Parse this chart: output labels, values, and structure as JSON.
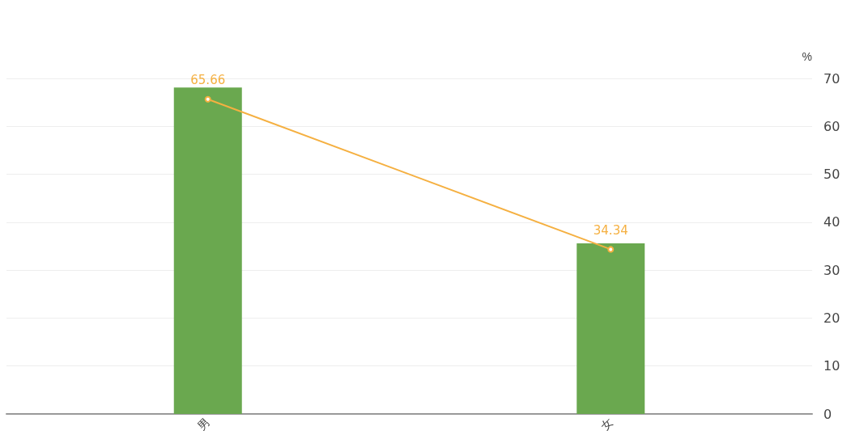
{
  "chart_data": {
    "type": "bar",
    "ylabel": "%",
    "categories": [
      "男",
      "女"
    ],
    "series": [
      {
        "color": "#6aa84f",
        "values": [
          68.1,
          35.6
        ]
      },
      {
        "type": "line",
        "color": "#f5b041",
        "values": [
          65.66,
          34.34
        ],
        "value_labels": [
          "65.66",
          "34.34"
        ],
        "marker": "circle"
      }
    ],
    "ylim": [
      0,
      70
    ],
    "yticks": [
      0,
      10,
      20,
      30,
      40,
      50,
      60,
      70
    ],
    "grid": "y"
  }
}
